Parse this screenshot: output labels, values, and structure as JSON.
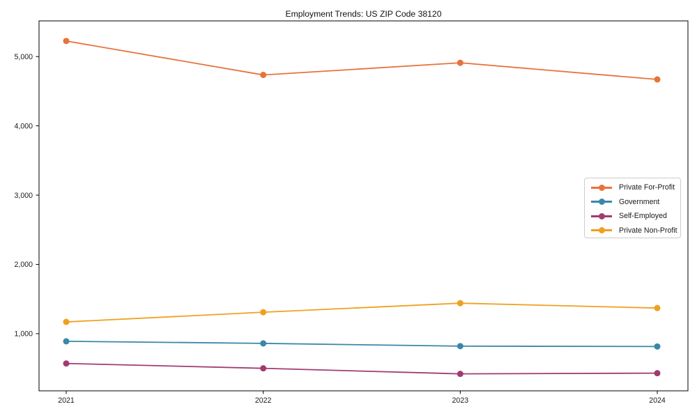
{
  "chart_data": {
    "type": "line",
    "title": "Employment Trends: US ZIP Code 38120",
    "xlabel": "",
    "ylabel": "",
    "categories": [
      "2021",
      "2022",
      "2023",
      "2024"
    ],
    "series": [
      {
        "name": "Private For-Profit",
        "color": "#E7723C",
        "values": [
          5225,
          4735,
          4910,
          4670
        ]
      },
      {
        "name": "Government",
        "color": "#3A87A8",
        "values": [
          890,
          860,
          820,
          815
        ]
      },
      {
        "name": "Self-Employed",
        "color": "#A23B72",
        "values": [
          570,
          500,
          420,
          430
        ]
      },
      {
        "name": "Private Non-Profit",
        "color": "#F0A01E",
        "values": [
          1170,
          1310,
          1440,
          1370
        ]
      }
    ],
    "yticks": [
      1000,
      2000,
      3000,
      4000,
      5000
    ],
    "ytick_labels": [
      "1,000",
      "2,000",
      "3,000",
      "4,000",
      "5,000"
    ],
    "ylim": [
      175,
      5515
    ],
    "grid": false,
    "legend_position": "center right",
    "axis_color": "#000000",
    "tick_label_color": "#1a1a1a",
    "marker": "circle"
  }
}
